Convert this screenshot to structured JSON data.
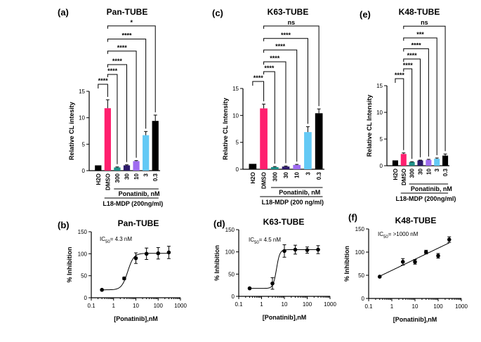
{
  "chart_data": [
    {
      "id": "a",
      "panel_label": "(a)",
      "type": "bar",
      "title": "Pan-TUBE",
      "ylabel": "Relative  CL intesity",
      "ylim": [
        0,
        15
      ],
      "yticks": [
        0,
        5,
        10,
        15
      ],
      "categories": [
        "H2O",
        "DMSO",
        "300",
        "30",
        "10",
        "3",
        "0.3"
      ],
      "values": [
        1.0,
        11.8,
        0.6,
        1.0,
        1.8,
        6.7,
        9.4
      ],
      "errors": [
        0,
        1.6,
        0.1,
        0.1,
        0.1,
        0.7,
        1.1
      ],
      "colors": [
        "#000000",
        "#ff1f6e",
        "#1e8f87",
        "#2d1a6b",
        "#9f6cf0",
        "#63c9f5",
        "#000000"
      ],
      "group_label": "Ponatinib, nM",
      "treatment_label": "L18-MDP (200ng/ml)",
      "comparisons": [
        {
          "a": 0,
          "b": 1,
          "label": "****"
        },
        {
          "a": 1,
          "b": 2,
          "label": "****"
        },
        {
          "a": 1,
          "b": 3,
          "label": "****"
        },
        {
          "a": 1,
          "b": 4,
          "label": "****"
        },
        {
          "a": 1,
          "b": 5,
          "label": "****"
        },
        {
          "a": 1,
          "b": 6,
          "label": "*"
        }
      ]
    },
    {
      "id": "c",
      "panel_label": "(c)",
      "type": "bar",
      "title": "K63-TUBE",
      "ylabel": "Relative CL Intensity",
      "ylim": [
        0,
        15
      ],
      "yticks": [
        0,
        5,
        10,
        15
      ],
      "categories": [
        "H2O",
        "DMSO",
        "300",
        "30",
        "10",
        "3",
        "0.3"
      ],
      "values": [
        1.0,
        11.3,
        0.4,
        0.5,
        0.8,
        6.9,
        10.4
      ],
      "errors": [
        0,
        0.8,
        0.1,
        0.1,
        0.1,
        1.0,
        0.8
      ],
      "colors": [
        "#000000",
        "#ff1f6e",
        "#1e8f87",
        "#2d1a6b",
        "#9f6cf0",
        "#63c9f5",
        "#000000"
      ],
      "group_label": "Ponatinib, nM",
      "treatment_label": "L18-MDP (200 ng/ml)",
      "comparisons": [
        {
          "a": 0,
          "b": 1,
          "label": "****"
        },
        {
          "a": 1,
          "b": 2,
          "label": "****"
        },
        {
          "a": 1,
          "b": 3,
          "label": "****"
        },
        {
          "a": 1,
          "b": 4,
          "label": "****"
        },
        {
          "a": 1,
          "b": 5,
          "label": "****"
        },
        {
          "a": 1,
          "b": 6,
          "label": "ns"
        }
      ]
    },
    {
      "id": "e",
      "panel_label": "(e)",
      "type": "bar",
      "title": "K48-TUBE",
      "ylabel": "Relative CL Intensity",
      "ylim": [
        0,
        15
      ],
      "yticks": [
        0,
        5,
        10,
        15
      ],
      "categories": [
        "H2O",
        "DMSO",
        "300",
        "30",
        "10",
        "3",
        "0.3"
      ],
      "values": [
        1.0,
        2.2,
        0.7,
        1.0,
        1.1,
        1.3,
        1.9
      ],
      "errors": [
        0,
        0.2,
        0.05,
        0.05,
        0.1,
        0.15,
        0.3
      ],
      "colors": [
        "#000000",
        "#ff1f6e",
        "#1e8f87",
        "#2d1a6b",
        "#9f6cf0",
        "#63c9f5",
        "#000000"
      ],
      "group_label": "Ponatinib, nM",
      "treatment_label": "L18-MDP (200ng/ml)",
      "comparisons": [
        {
          "a": 0,
          "b": 1,
          "label": "****"
        },
        {
          "a": 1,
          "b": 2,
          "label": "****"
        },
        {
          "a": 1,
          "b": 3,
          "label": "****"
        },
        {
          "a": 1,
          "b": 4,
          "label": "****"
        },
        {
          "a": 1,
          "b": 5,
          "label": "***"
        },
        {
          "a": 1,
          "b": 6,
          "label": "ns"
        }
      ]
    },
    {
      "id": "b",
      "panel_label": "(b)",
      "type": "scatter",
      "title": "Pan-TUBE",
      "ic50_label": "IC",
      "ic50_sub": "50",
      "ic50_value": "= 4.3 nM",
      "xlabel": "[Ponatinib],nM",
      "ylabel": "% Inhibition",
      "xlim": [
        0.1,
        1000
      ],
      "ylim": [
        0,
        150
      ],
      "xticks": [
        0.1,
        1,
        10,
        100,
        1000
      ],
      "yticks": [
        0,
        50,
        100,
        150
      ],
      "x": [
        0.3,
        3,
        10,
        30,
        100,
        300
      ],
      "y": [
        18,
        44,
        90,
        100,
        101,
        103
      ],
      "err": [
        2,
        3,
        12,
        13,
        13,
        14
      ],
      "fit": {
        "model": "sigmoid",
        "bottom": 18,
        "top": 101,
        "ec50": 4.3,
        "hill": 3.2
      }
    },
    {
      "id": "d",
      "panel_label": "(d)",
      "type": "scatter",
      "title": "K63-TUBE",
      "ic50_label": "IC",
      "ic50_sub": "50",
      "ic50_value": "= 4.5 nM",
      "xlabel": "[Ponatinib],nM",
      "ylabel": "% Inhibition",
      "xlim": [
        0.1,
        1000
      ],
      "ylim": [
        0,
        150
      ],
      "xticks": [
        0.1,
        1,
        10,
        100,
        1000
      ],
      "yticks": [
        0,
        50,
        100,
        150
      ],
      "x": [
        0.3,
        3,
        10,
        30,
        100,
        300
      ],
      "y": [
        18,
        29,
        102,
        105,
        104,
        105
      ],
      "err": [
        2,
        13,
        14,
        10,
        7,
        9
      ],
      "fit": {
        "model": "sigmoid",
        "bottom": 18,
        "top": 105,
        "ec50": 4.5,
        "hill": 6
      }
    },
    {
      "id": "f",
      "panel_label": "(f)",
      "type": "scatter",
      "title": "K48-TUBE",
      "ic50_label": "IC",
      "ic50_sub": "50",
      "ic50_value": "= >1000 nM",
      "xlabel": "[Ponatinib],nM",
      "ylabel": "% Inhibition",
      "xlim": [
        0.1,
        1000
      ],
      "ylim": [
        0,
        150
      ],
      "xticks": [
        0.1,
        1,
        10,
        100,
        1000
      ],
      "yticks": [
        0,
        50,
        100,
        150
      ],
      "x": [
        0.3,
        3,
        10,
        30,
        100,
        300
      ],
      "y": [
        47,
        79,
        79,
        100,
        92,
        127
      ],
      "err": [
        1,
        7,
        5,
        4,
        5,
        6
      ],
      "fit": {
        "model": "linear-log",
        "y_at_0.3": 48,
        "y_at_300": 120
      }
    }
  ]
}
